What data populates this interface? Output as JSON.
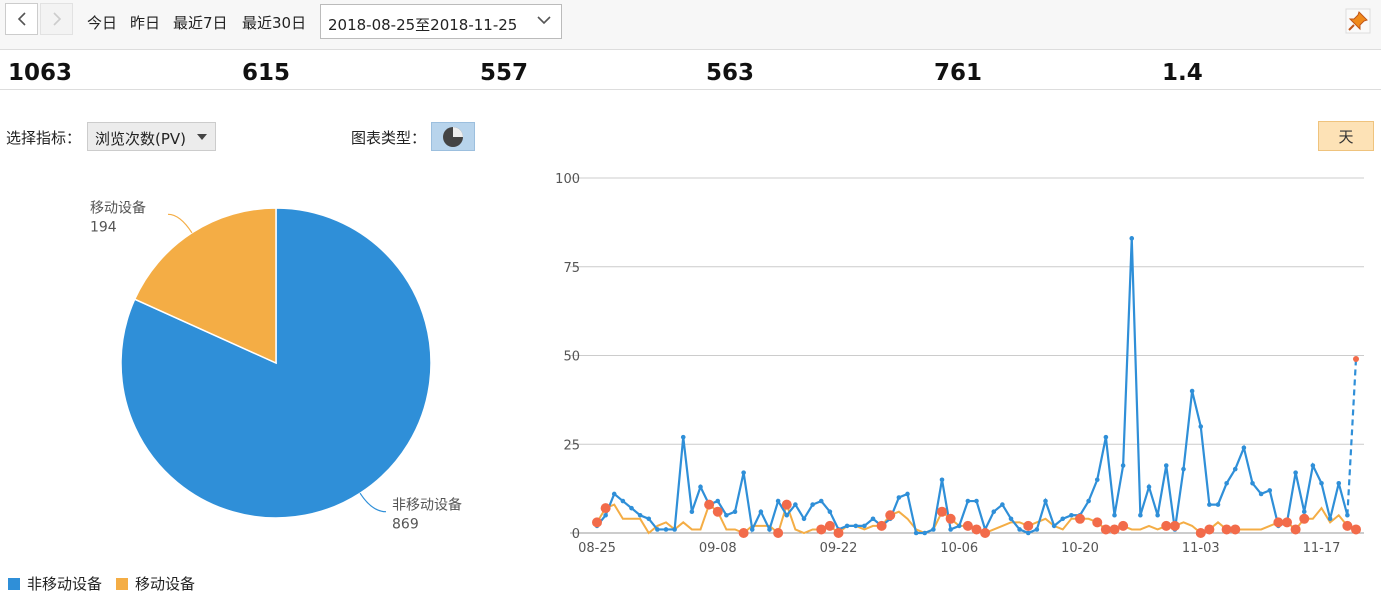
{
  "toolbar": {
    "prev_icon": "chevron-left-icon",
    "next_icon": "chevron-right-icon",
    "quick_ranges": [
      "今日",
      "昨日",
      "最近7日",
      "最近30日"
    ],
    "date_range": "2018-08-25至2018-11-25",
    "pin_icon": "pin-icon"
  },
  "stats": [
    "1063",
    "615",
    "557",
    "563",
    "761",
    "1.4"
  ],
  "controls": {
    "metric_label": "选择指标：",
    "metric_value": "浏览次数(PV)",
    "chart_type_label": "图表类型：",
    "chart_type_icon": "pie-chart-icon",
    "granularity": "天"
  },
  "colors": {
    "blue": "#2f8fd8",
    "orange": "#f4ad45",
    "marker": "#f26b4a"
  },
  "chart_data": [
    {
      "type": "pie",
      "slices": [
        {
          "name": "非移动设备",
          "value": 869,
          "color": "#2f8fd8"
        },
        {
          "name": "移动设备",
          "value": 194,
          "color": "#f4ad45"
        }
      ],
      "legend": [
        "非移动设备",
        "移动设备"
      ],
      "legend_position": "bottom-left"
    },
    {
      "type": "line",
      "ylim": [
        0,
        100
      ],
      "yticks": [
        0,
        25,
        50,
        75,
        100
      ],
      "xtick_labels": [
        "08-25",
        "09-08",
        "09-22",
        "10-06",
        "10-20",
        "11-03",
        "11-17"
      ],
      "xtick_index": [
        0,
        14,
        28,
        42,
        56,
        70,
        84
      ],
      "grid": true,
      "series": [
        {
          "color": "#2f8fd8",
          "values": [
            2,
            5,
            11,
            9,
            7,
            5,
            4,
            1,
            1,
            1,
            27,
            6,
            13,
            8,
            9,
            5,
            6,
            17,
            1,
            6,
            1,
            9,
            5,
            8,
            4,
            8,
            9,
            6,
            1,
            2,
            2,
            2,
            4,
            2,
            4,
            10,
            11,
            0,
            0,
            1,
            15,
            1,
            2,
            9,
            9,
            1,
            6,
            8,
            4,
            1,
            0,
            1,
            9,
            2,
            4,
            5,
            5,
            9,
            15,
            27,
            5,
            19,
            83,
            5,
            13,
            5,
            19,
            1,
            18,
            40,
            30,
            8,
            8,
            14,
            18,
            24,
            14,
            11,
            12,
            2,
            3,
            17,
            6,
            19,
            14,
            4,
            14,
            5,
            49
          ],
          "last_segment_dashed": true
        },
        {
          "color": "#f4ad45",
          "values": [
            3,
            7,
            8,
            4,
            4,
            4,
            0,
            2,
            3,
            1,
            3,
            1,
            1,
            8,
            6,
            1,
            1,
            0,
            2,
            2,
            2,
            0,
            8,
            1,
            0,
            1,
            1,
            2,
            0,
            2,
            2,
            1,
            2,
            2,
            5,
            6,
            4,
            1,
            0,
            1,
            6,
            4,
            2,
            2,
            1,
            0,
            1,
            2,
            3,
            3,
            2,
            3,
            4,
            2,
            1,
            4,
            4,
            4,
            3,
            1,
            1,
            2,
            1,
            1,
            2,
            1,
            2,
            2,
            3,
            2,
            0,
            1,
            3,
            1,
            1,
            1,
            1,
            1,
            2,
            3,
            3,
            1,
            4,
            4,
            7,
            3,
            5,
            2,
            1
          ],
          "markers": [
            0,
            1,
            13,
            14,
            17,
            21,
            22,
            26,
            27,
            28,
            33,
            34,
            40,
            41,
            43,
            44,
            45,
            50,
            56,
            58,
            59,
            60,
            61,
            66,
            67,
            70,
            71,
            73,
            74,
            79,
            80,
            81,
            82,
            87,
            88
          ]
        }
      ]
    }
  ]
}
